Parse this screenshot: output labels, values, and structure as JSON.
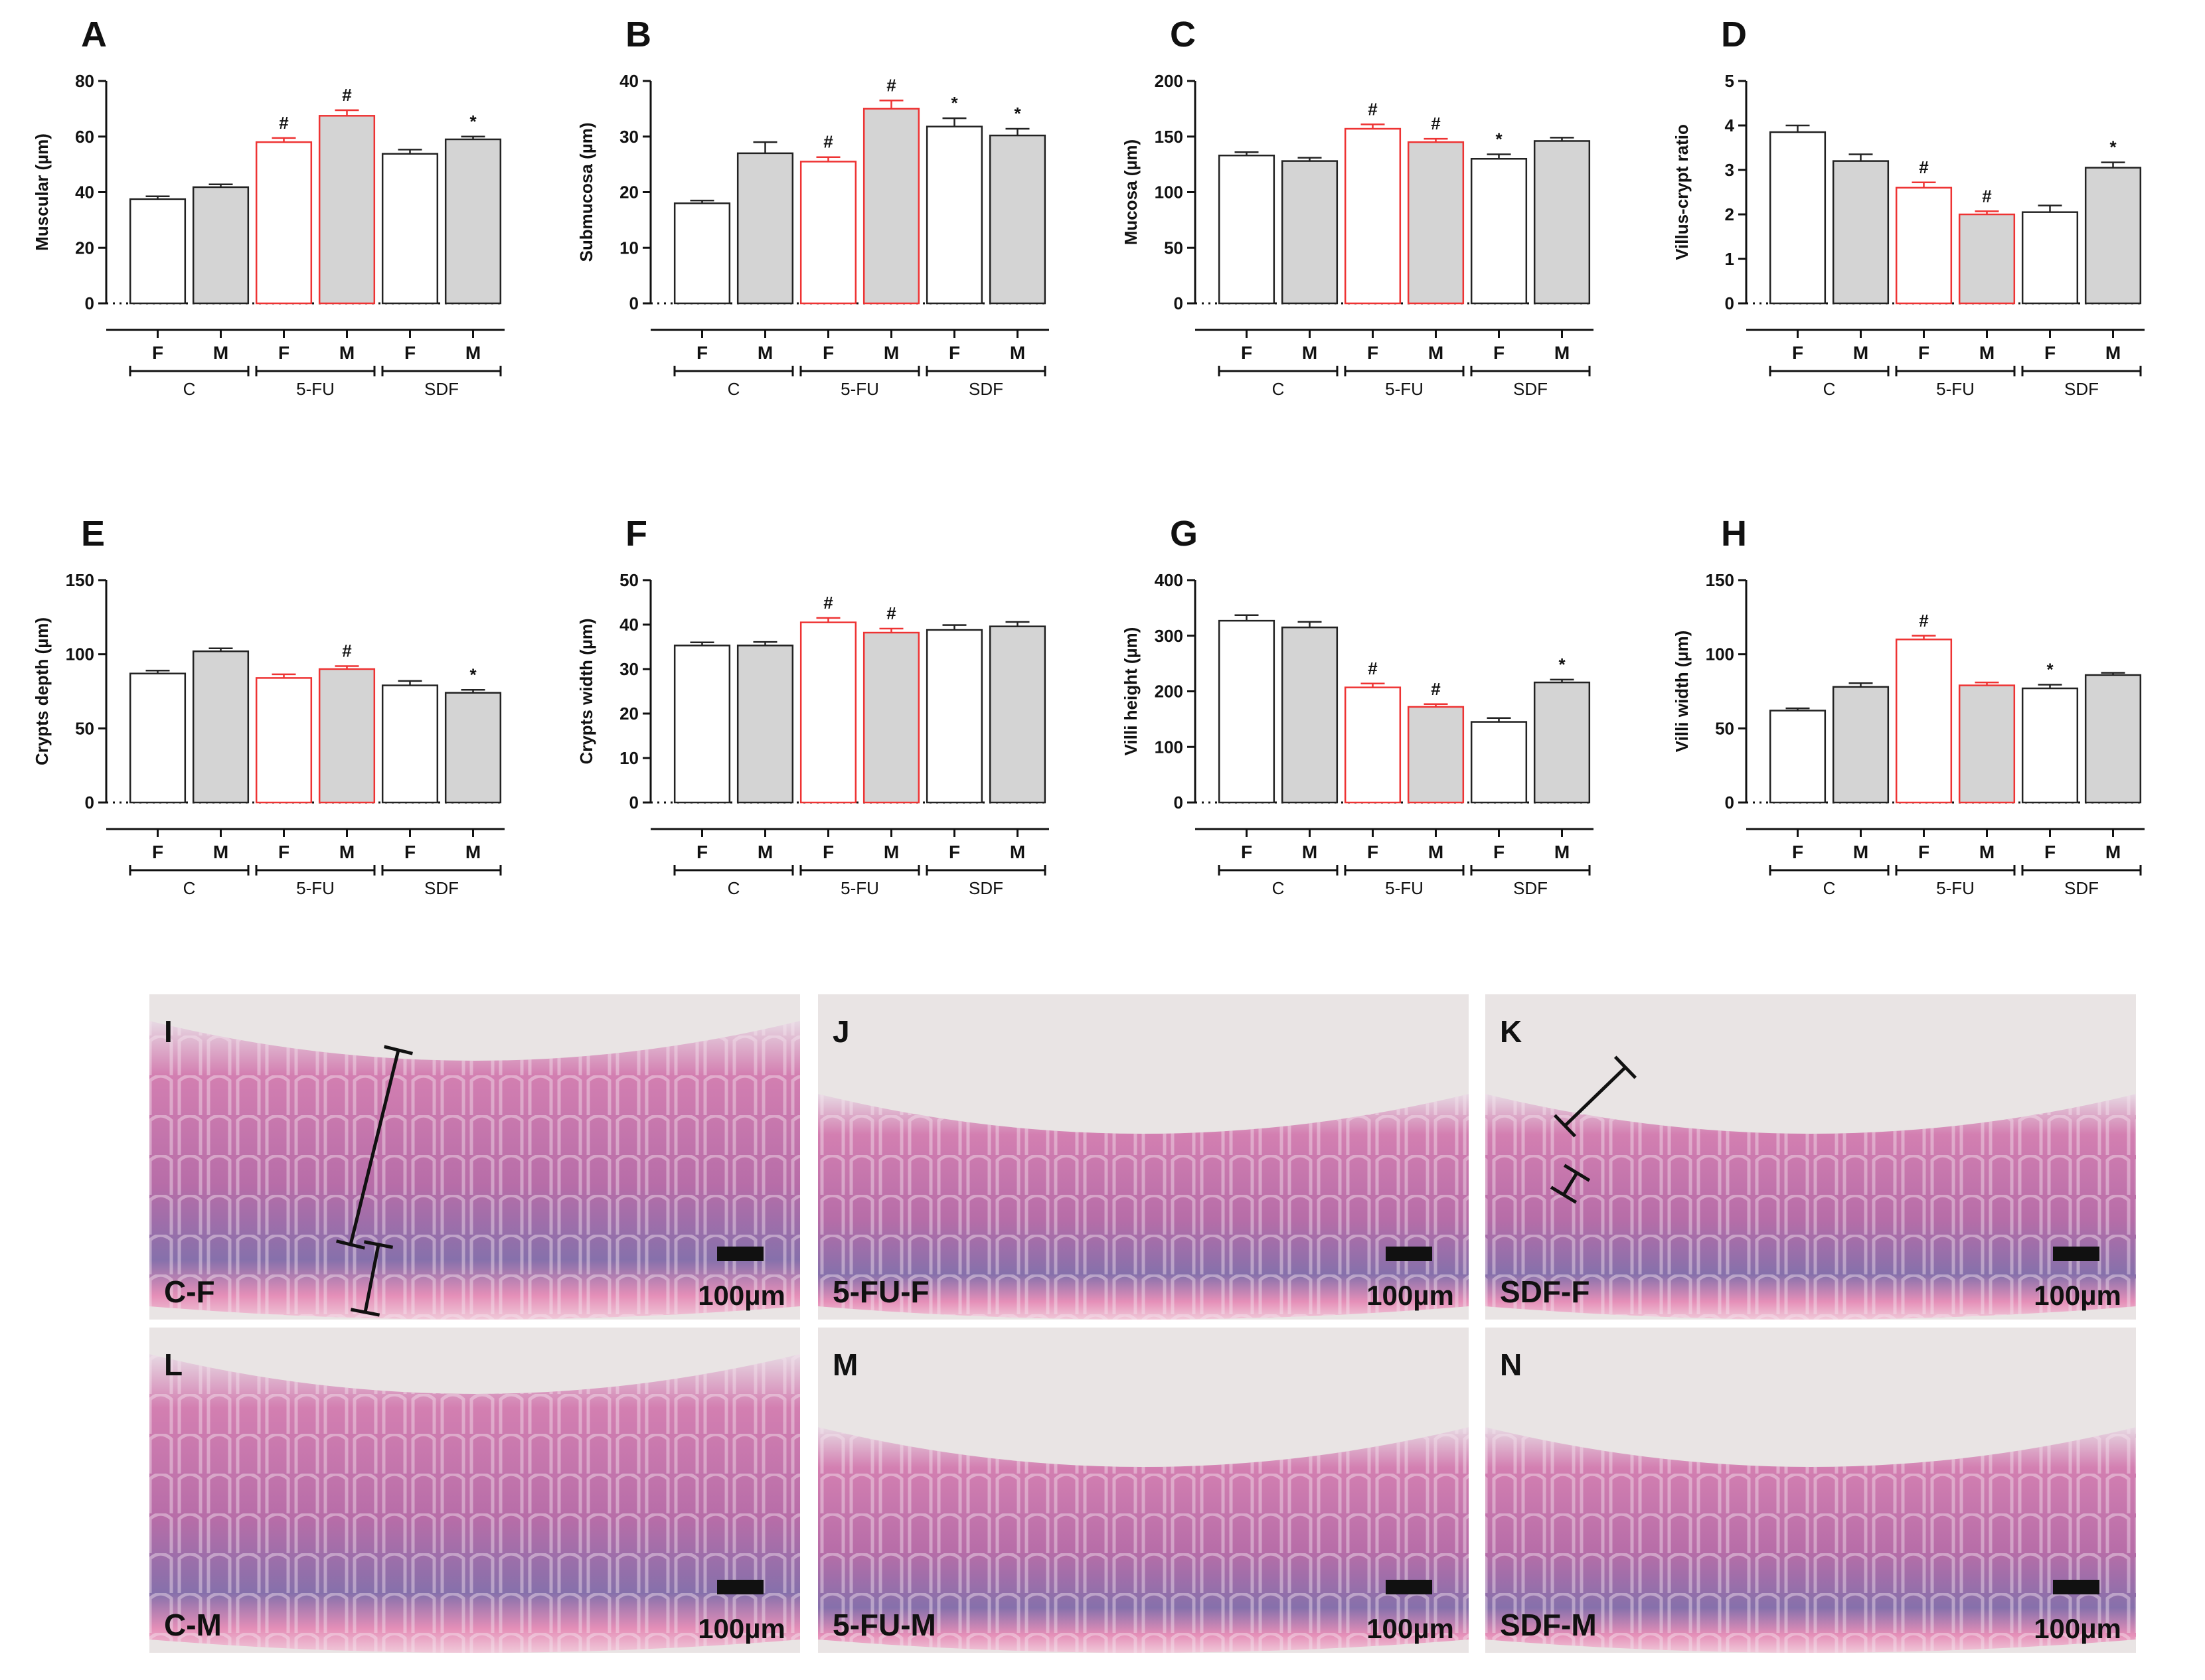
{
  "chart_data": [
    {
      "panel": "A",
      "type": "bar",
      "ylabel": "Muscular (µm)",
      "ylim": [
        0,
        80
      ],
      "yticks": [
        0,
        20,
        40,
        60,
        80
      ],
      "categories": [
        "F",
        "M",
        "F",
        "M",
        "F",
        "M"
      ],
      "groups": [
        "C",
        "5-FU",
        "SDF"
      ],
      "values": [
        37.5,
        41.8,
        58,
        67.5,
        53.8,
        59
      ],
      "errors": [
        1,
        1,
        1.5,
        2,
        1.5,
        1
      ],
      "fills": [
        "#ffffff",
        "#d4d4d4",
        "#ffffff",
        "#d4d4d4",
        "#ffffff",
        "#d4d4d4"
      ],
      "strokes": [
        "#222222",
        "#222222",
        "#ee3333",
        "#ee3333",
        "#222222",
        "#222222"
      ],
      "marks": [
        "",
        "",
        "#",
        "#",
        "",
        "*"
      ]
    },
    {
      "panel": "B",
      "type": "bar",
      "ylabel": "Submucosa (µm)",
      "ylim": [
        0,
        40
      ],
      "yticks": [
        0,
        10,
        20,
        30,
        40
      ],
      "categories": [
        "F",
        "M",
        "F",
        "M",
        "F",
        "M"
      ],
      "groups": [
        "C",
        "5-FU",
        "SDF"
      ],
      "values": [
        18,
        27,
        25.5,
        35,
        31.8,
        30.2
      ],
      "errors": [
        0.5,
        2,
        0.8,
        1.5,
        1.5,
        1.2
      ],
      "fills": [
        "#ffffff",
        "#d4d4d4",
        "#ffffff",
        "#d4d4d4",
        "#ffffff",
        "#d4d4d4"
      ],
      "strokes": [
        "#222222",
        "#222222",
        "#ee3333",
        "#ee3333",
        "#222222",
        "#222222"
      ],
      "marks": [
        "",
        "",
        "#",
        "#",
        "*",
        "*"
      ]
    },
    {
      "panel": "C",
      "type": "bar",
      "ylabel": "Mucosa (µm)",
      "ylim": [
        0,
        200
      ],
      "yticks": [
        0,
        50,
        100,
        150,
        200
      ],
      "categories": [
        "F",
        "M",
        "F",
        "M",
        "F",
        "M"
      ],
      "groups": [
        "C",
        "5-FU",
        "SDF"
      ],
      "values": [
        133,
        128,
        157,
        145,
        130,
        146
      ],
      "errors": [
        3,
        3,
        4,
        3,
        4,
        3
      ],
      "fills": [
        "#ffffff",
        "#d4d4d4",
        "#ffffff",
        "#d4d4d4",
        "#ffffff",
        "#d4d4d4"
      ],
      "strokes": [
        "#222222",
        "#222222",
        "#ee3333",
        "#ee3333",
        "#222222",
        "#222222"
      ],
      "marks": [
        "",
        "",
        "#",
        "#",
        "*",
        ""
      ]
    },
    {
      "panel": "D",
      "type": "bar",
      "ylabel": "Villus-crypt ratio",
      "ylim": [
        0,
        5
      ],
      "yticks": [
        0,
        1,
        2,
        3,
        4,
        5
      ],
      "categories": [
        "F",
        "M",
        "F",
        "M",
        "F",
        "M"
      ],
      "groups": [
        "C",
        "5-FU",
        "SDF"
      ],
      "values": [
        3.85,
        3.2,
        2.6,
        2.0,
        2.05,
        3.05
      ],
      "errors": [
        0.15,
        0.15,
        0.12,
        0.07,
        0.15,
        0.12
      ],
      "fills": [
        "#ffffff",
        "#d4d4d4",
        "#ffffff",
        "#d4d4d4",
        "#ffffff",
        "#d4d4d4"
      ],
      "strokes": [
        "#222222",
        "#222222",
        "#ee3333",
        "#ee3333",
        "#222222",
        "#222222"
      ],
      "marks": [
        "",
        "",
        "#",
        "#",
        "",
        "*"
      ]
    },
    {
      "panel": "E",
      "type": "bar",
      "ylabel": "Crypts depth (µm)",
      "ylim": [
        0,
        150
      ],
      "yticks": [
        0,
        50,
        100,
        150
      ],
      "categories": [
        "F",
        "M",
        "F",
        "M",
        "F",
        "M"
      ],
      "groups": [
        "C",
        "5-FU",
        "SDF"
      ],
      "values": [
        87,
        102,
        84,
        90,
        79,
        74
      ],
      "errors": [
        2,
        2,
        2.5,
        2,
        3,
        2
      ],
      "fills": [
        "#ffffff",
        "#d4d4d4",
        "#ffffff",
        "#d4d4d4",
        "#ffffff",
        "#d4d4d4"
      ],
      "strokes": [
        "#222222",
        "#222222",
        "#ee3333",
        "#ee3333",
        "#222222",
        "#222222"
      ],
      "marks": [
        "",
        "",
        "",
        "#",
        "",
        "*"
      ]
    },
    {
      "panel": "F",
      "type": "bar",
      "ylabel": "Crypts width (µm)",
      "ylim": [
        0,
        50
      ],
      "yticks": [
        0,
        10,
        20,
        30,
        40,
        50
      ],
      "categories": [
        "F",
        "M",
        "F",
        "M",
        "F",
        "M"
      ],
      "groups": [
        "C",
        "5-FU",
        "SDF"
      ],
      "values": [
        35.3,
        35.3,
        40.5,
        38.2,
        38.8,
        39.6
      ],
      "errors": [
        0.7,
        0.8,
        1,
        0.9,
        1.1,
        1
      ],
      "fills": [
        "#ffffff",
        "#d4d4d4",
        "#ffffff",
        "#d4d4d4",
        "#ffffff",
        "#d4d4d4"
      ],
      "strokes": [
        "#222222",
        "#222222",
        "#ee3333",
        "#ee3333",
        "#222222",
        "#222222"
      ],
      "marks": [
        "",
        "",
        "#",
        "#",
        "",
        ""
      ]
    },
    {
      "panel": "G",
      "type": "bar",
      "ylabel": "Villi height (µm)",
      "ylim": [
        0,
        400
      ],
      "yticks": [
        0,
        100,
        200,
        300,
        400
      ],
      "categories": [
        "F",
        "M",
        "F",
        "M",
        "F",
        "M"
      ],
      "groups": [
        "C",
        "5-FU",
        "SDF"
      ],
      "values": [
        327,
        315,
        207,
        172,
        145,
        216
      ],
      "errors": [
        10,
        10,
        7,
        5,
        7,
        5
      ],
      "fills": [
        "#ffffff",
        "#d4d4d4",
        "#ffffff",
        "#d4d4d4",
        "#ffffff",
        "#d4d4d4"
      ],
      "strokes": [
        "#222222",
        "#222222",
        "#ee3333",
        "#ee3333",
        "#222222",
        "#222222"
      ],
      "marks": [
        "",
        "",
        "#",
        "#",
        "",
        "*"
      ]
    },
    {
      "panel": "H",
      "type": "bar",
      "ylabel": "Villi width (µm)",
      "ylim": [
        0,
        150
      ],
      "yticks": [
        0,
        50,
        100,
        150
      ],
      "categories": [
        "F",
        "M",
        "F",
        "M",
        "F",
        "M"
      ],
      "groups": [
        "C",
        "5-FU",
        "SDF"
      ],
      "values": [
        62,
        78,
        110,
        79,
        77,
        86
      ],
      "errors": [
        1.5,
        2.5,
        2.5,
        2,
        2.5,
        1.5
      ],
      "fills": [
        "#ffffff",
        "#d4d4d4",
        "#ffffff",
        "#d4d4d4",
        "#ffffff",
        "#d4d4d4"
      ],
      "strokes": [
        "#222222",
        "#222222",
        "#ee3333",
        "#ee3333",
        "#222222",
        "#222222"
      ],
      "marks": [
        "",
        "",
        "#",
        "",
        "*",
        ""
      ]
    }
  ],
  "micrographs": [
    {
      "letter": "I",
      "label": "C-F",
      "scale": "100µm"
    },
    {
      "letter": "J",
      "label": "5-FU-F",
      "scale": "100µm"
    },
    {
      "letter": "K",
      "label": "SDF-F",
      "scale": "100µm"
    },
    {
      "letter": "L",
      "label": "C-M",
      "scale": "100µm"
    },
    {
      "letter": "M",
      "label": "5-FU-M",
      "scale": "100µm"
    },
    {
      "letter": "N",
      "label": "SDF-M",
      "scale": "100µm"
    }
  ],
  "colors": {
    "control_bar_outline": "#222222",
    "treatment_bar_outline": "#ee3333",
    "female_fill": "#ffffff",
    "male_fill": "#d4d4d4",
    "tissue_pink": "#e07fb0",
    "tissue_purple": "#8e6aa8",
    "background": "#e9e4e4"
  }
}
